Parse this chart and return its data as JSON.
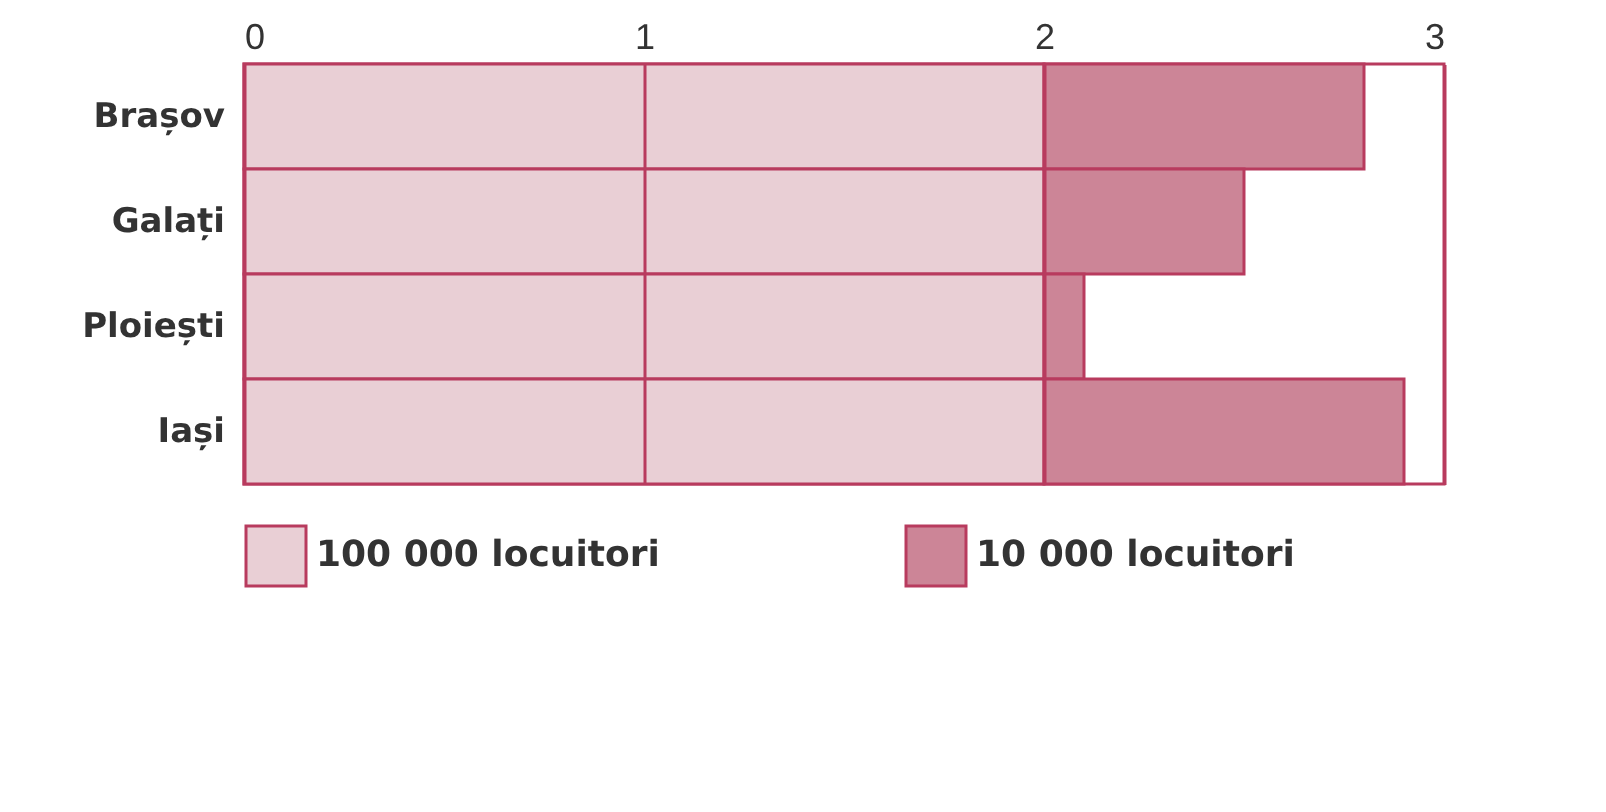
{
  "chart_data": {
    "type": "bar",
    "orientation": "horizontal",
    "stacked": true,
    "categories": [
      "Brașov",
      "Galați",
      "Ploiești",
      "Iași"
    ],
    "series": [
      {
        "name": "100 000 locuitori",
        "color": "#e9cfd5",
        "values": [
          2,
          2,
          2,
          2
        ]
      },
      {
        "name": "10 000 locuitori",
        "color": "#cc8597",
        "values": [
          0.8,
          0.5,
          0.1,
          0.9
        ]
      }
    ],
    "xlim": [
      0,
      3
    ],
    "xticks": [
      0,
      1,
      2,
      3
    ],
    "grid": "x",
    "legend": "bottom"
  }
}
